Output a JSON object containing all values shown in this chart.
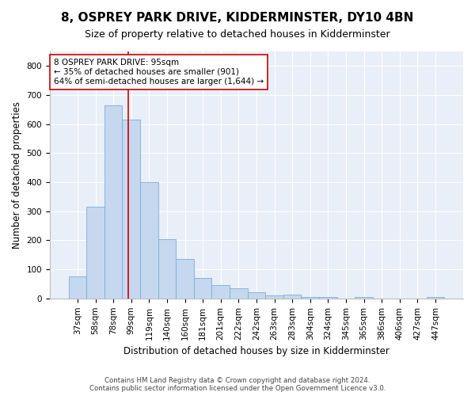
{
  "title": "8, OSPREY PARK DRIVE, KIDDERMINSTER, DY10 4BN",
  "subtitle": "Size of property relative to detached houses in Kidderminster",
  "xlabel": "Distribution of detached houses by size in Kidderminster",
  "ylabel": "Number of detached properties",
  "categories": [
    "37sqm",
    "58sqm",
    "78sqm",
    "99sqm",
    "119sqm",
    "140sqm",
    "160sqm",
    "181sqm",
    "201sqm",
    "222sqm",
    "242sqm",
    "263sqm",
    "283sqm",
    "304sqm",
    "324sqm",
    "345sqm",
    "365sqm",
    "386sqm",
    "406sqm",
    "427sqm",
    "447sqm"
  ],
  "values": [
    75,
    315,
    665,
    615,
    400,
    205,
    135,
    70,
    45,
    35,
    20,
    10,
    12,
    5,
    5,
    0,
    5,
    0,
    0,
    0,
    5
  ],
  "bar_color": "#c5d8f0",
  "bar_edge_color": "#7aadd4",
  "vline_x_index": 2.82,
  "vline_color": "#cc0000",
  "annotation_text": "8 OSPREY PARK DRIVE: 95sqm\n← 35% of detached houses are smaller (901)\n64% of semi-detached houses are larger (1,644) →",
  "annotation_box_facecolor": "#ffffff",
  "annotation_box_edgecolor": "#cc0000",
  "ylim": [
    0,
    850
  ],
  "yticks": [
    0,
    100,
    200,
    300,
    400,
    500,
    600,
    700,
    800
  ],
  "footer": "Contains HM Land Registry data © Crown copyright and database right 2024.\nContains public sector information licensed under the Open Government Licence v3.0.",
  "bg_color": "#e8eff8",
  "fig_bg_color": "#ffffff",
  "title_fontsize": 11,
  "subtitle_fontsize": 9,
  "xlabel_fontsize": 8.5,
  "ylabel_fontsize": 8.5,
  "tick_fontsize": 7.5,
  "annotation_fontsize": 7.5,
  "footer_fontsize": 6.2
}
